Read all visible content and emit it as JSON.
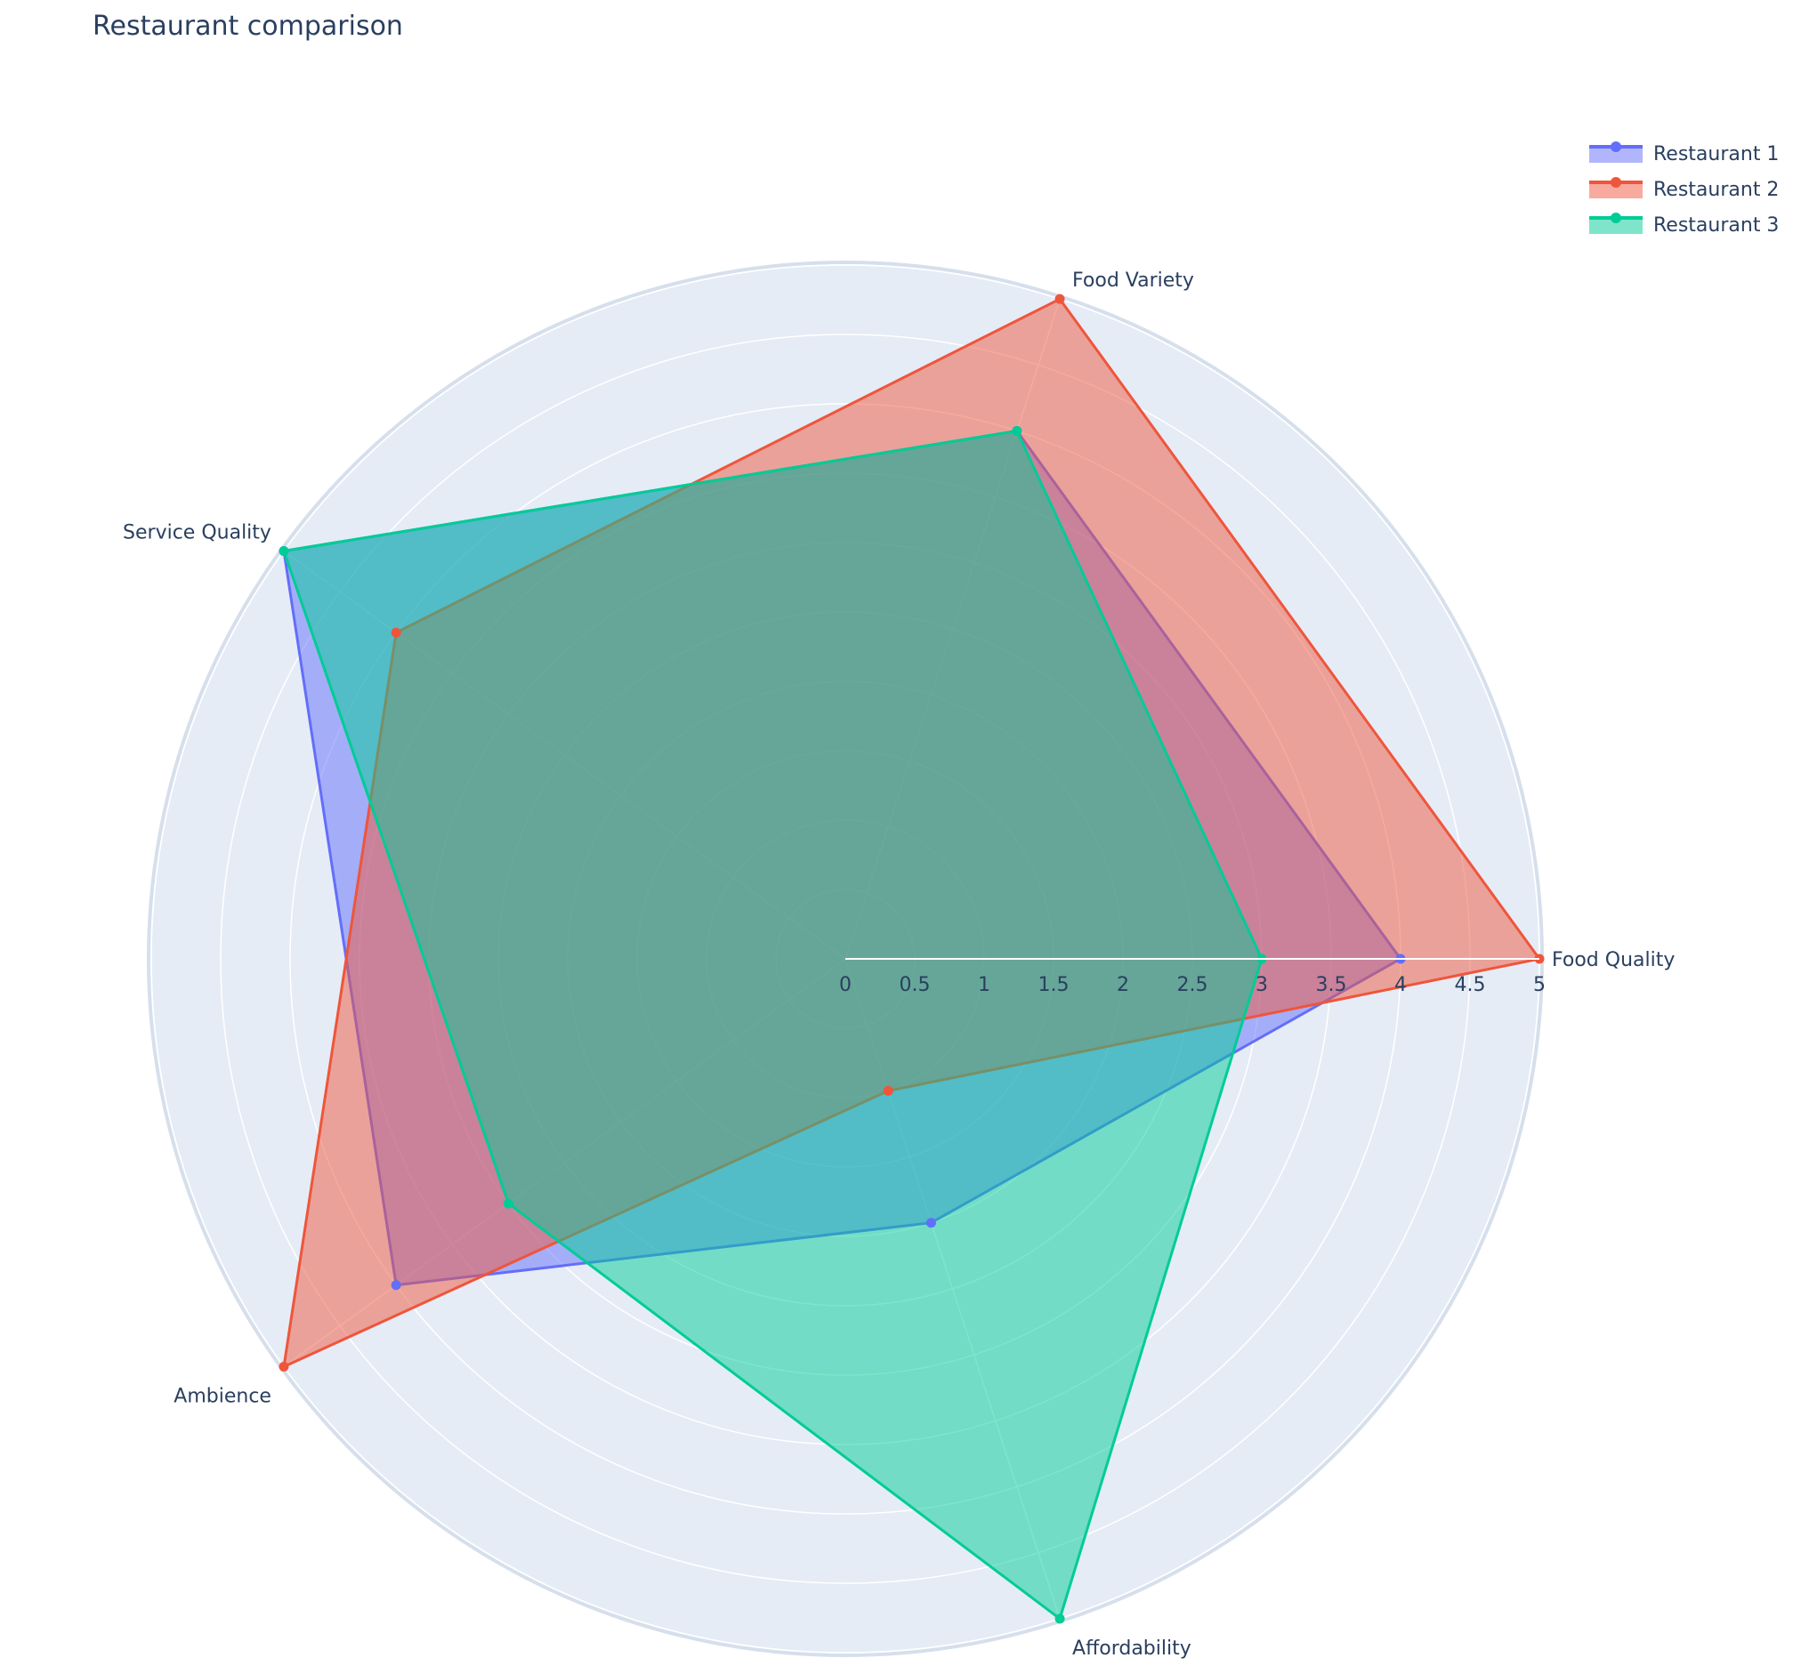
{
  "chart_data": {
    "type": "radar",
    "title": "Restaurant comparison",
    "categories": [
      "Food Quality",
      "Food Variety",
      "Service Quality",
      "Ambience",
      "Affordability"
    ],
    "series": [
      {
        "name": "Restaurant 1",
        "values": [
          4,
          4,
          5,
          4,
          2
        ],
        "color": "#636efa"
      },
      {
        "name": "Restaurant 2",
        "values": [
          5,
          5,
          4,
          5,
          1
        ],
        "color": "#ef553b"
      },
      {
        "name": "Restaurant 3",
        "values": [
          3,
          4,
          5,
          3,
          5
        ],
        "color": "#00cc96"
      }
    ],
    "radial_range": [
      0,
      5
    ],
    "radial_ticks": [
      "0",
      "0.5",
      "1",
      "1.5",
      "2",
      "2.5",
      "3",
      "3.5",
      "4",
      "4.5",
      "5"
    ],
    "grid": true,
    "legend_position": "top-right",
    "background_color": "#e5ecf6"
  }
}
